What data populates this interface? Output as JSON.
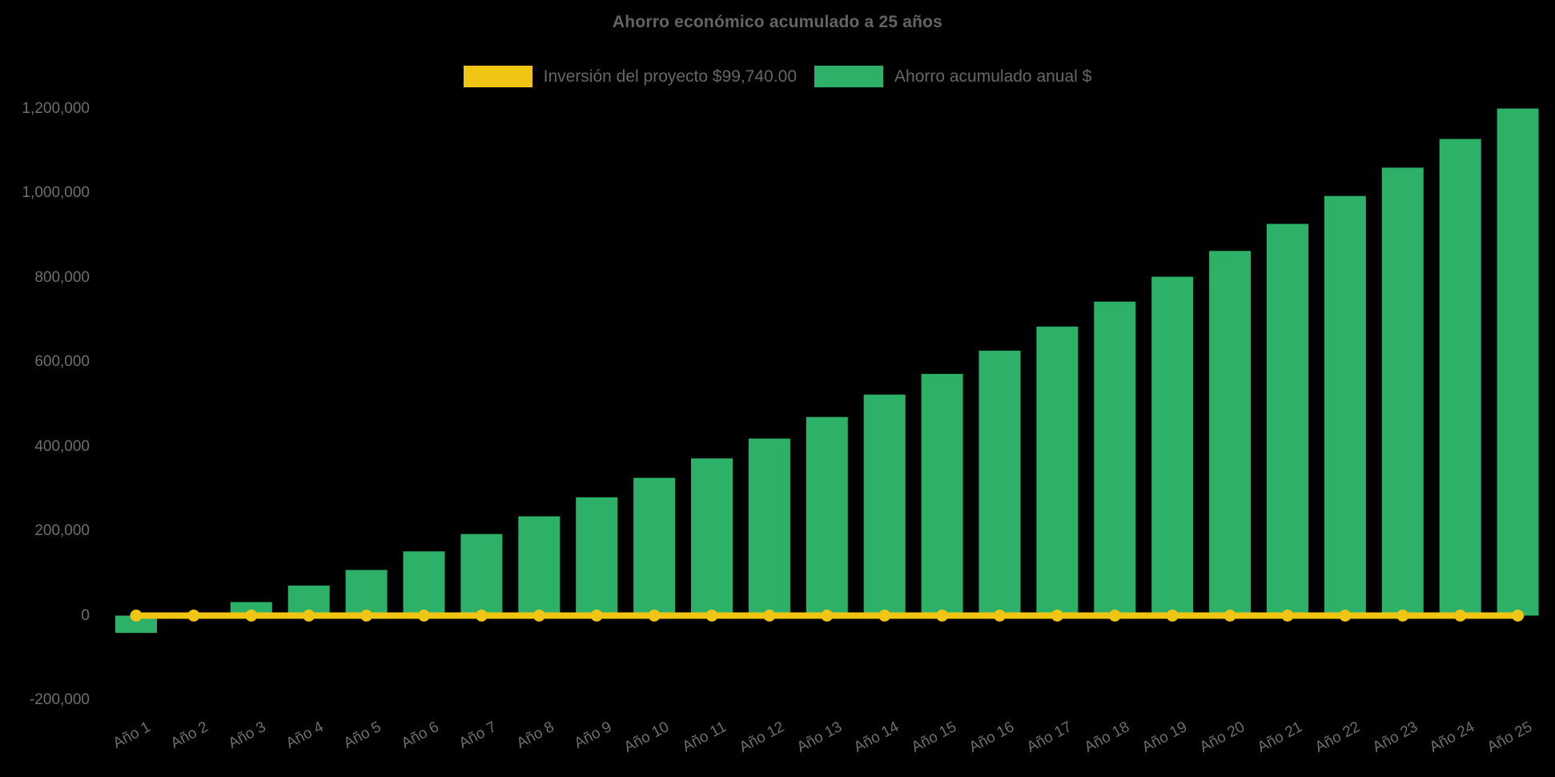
{
  "page": {
    "background": "#000000",
    "text_color": "#666666"
  },
  "chart_data": {
    "type": "bar",
    "title": "Ahorro económico acumulado a 25 años",
    "xlabel": "",
    "ylabel": "",
    "grid": false,
    "legend_position": "top",
    "ylim": [
      -200000,
      1200000
    ],
    "categories": [
      "Año 1",
      "Año 2",
      "Año 3",
      "Año 4",
      "Año 5",
      "Año 6",
      "Año 7",
      "Año 8",
      "Año 9",
      "Año 10",
      "Año 11",
      "Año 12",
      "Año 13",
      "Año 14",
      "Año 15",
      "Año 16",
      "Año 17",
      "Año 18",
      "Año 19",
      "Año 20",
      "Año 21",
      "Año 22",
      "Año 23",
      "Año 24",
      "Año 25"
    ],
    "series": [
      {
        "name": "Inversión del proyecto $99,740.00",
        "type": "line",
        "color": "#F0C513",
        "marker": "circle",
        "values": [
          0,
          0,
          0,
          0,
          0,
          0,
          0,
          0,
          0,
          0,
          0,
          0,
          0,
          0,
          0,
          0,
          0,
          0,
          0,
          0,
          0,
          0,
          0,
          0,
          0
        ]
      },
      {
        "name": "Ahorro acumulado anual $",
        "type": "bar",
        "color": "#2DB067",
        "values": [
          -41000,
          -4000,
          32000,
          71000,
          108000,
          152000,
          193000,
          235000,
          280000,
          326000,
          372000,
          419000,
          470000,
          523000,
          572000,
          627000,
          684000,
          743000,
          802000,
          863000,
          927000,
          993000,
          1060000,
          1128000,
          1200000
        ]
      }
    ],
    "y_ticks": [
      {
        "value": 1200000,
        "label": "1,200,000"
      },
      {
        "value": 1000000,
        "label": "1,000,000"
      },
      {
        "value": 800000,
        "label": "800,000"
      },
      {
        "value": 600000,
        "label": "600,000"
      },
      {
        "value": 400000,
        "label": "400,000"
      },
      {
        "value": 200000,
        "label": "200,000"
      },
      {
        "value": 0,
        "label": "0"
      },
      {
        "value": -200000,
        "label": "-200,000"
      }
    ]
  }
}
